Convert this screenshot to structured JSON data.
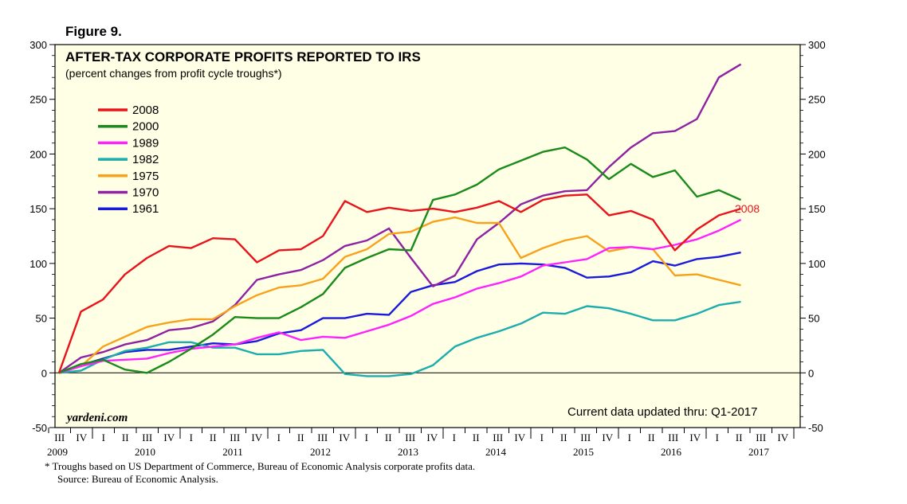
{
  "figure_label": "Figure 9.",
  "watermark": "yardeni.com",
  "updated_note": "Current data updated thru: Q1-2017",
  "footnote": "*  Troughs based on US Department of Commerce, Bureau of Economic Analysis corporate profits data.",
  "source": "Source: Bureau of Economic Analysis.",
  "end_label": "2008",
  "colors": {
    "background": "#ffffe6",
    "2008": "#e8141b",
    "2000": "#1a8a1a",
    "1989": "#ff22ff",
    "1982": "#1cadad",
    "1975": "#f7a21b",
    "1970": "#8e22a3",
    "1961": "#1a1adc"
  },
  "chart_data": {
    "type": "line",
    "title": "AFTER-TAX CORPORATE PROFITS REPORTED TO IRS",
    "subtitle": "(percent changes from profit cycle troughs*)",
    "xlabel": "",
    "ylabel": "",
    "ylim": [
      -50,
      300
    ],
    "yticks": [
      -50,
      0,
      50,
      100,
      150,
      200,
      250,
      300
    ],
    "ytick_labels": [
      "-50",
      "0",
      "50",
      "100",
      "150",
      "200",
      "250",
      "300"
    ],
    "quarter_labels": [
      "III",
      "IV",
      "I",
      "II",
      "III",
      "IV",
      "I",
      "II",
      "III",
      "IV",
      "I",
      "II",
      "III",
      "IV",
      "I",
      "II",
      "III",
      "IV",
      "I",
      "II",
      "III",
      "IV",
      "I",
      "II",
      "III",
      "IV",
      "I",
      "II",
      "III",
      "IV",
      "I",
      "II",
      "III",
      "IV"
    ],
    "year_labels": [
      "2009",
      "2010",
      "2011",
      "2012",
      "2013",
      "2014",
      "2015",
      "2016",
      "2017"
    ],
    "x": [
      0,
      1,
      2,
      3,
      4,
      5,
      6,
      7,
      8,
      9,
      10,
      11,
      12,
      13,
      14,
      15,
      16,
      17,
      18,
      19,
      20,
      21,
      22,
      23,
      24,
      25,
      26,
      27,
      28,
      29,
      30,
      31
    ],
    "legend": [
      "2008",
      "2000",
      "1989",
      "1982",
      "1975",
      "1970",
      "1961"
    ],
    "legend_position": "upper-left",
    "series": [
      {
        "name": "2008",
        "values": [
          0,
          56,
          67,
          90,
          105,
          116,
          114,
          123,
          122,
          101,
          112,
          113,
          125,
          157,
          147,
          151,
          148,
          150,
          147,
          151,
          157,
          147,
          158,
          162,
          163,
          144,
          148,
          140,
          112,
          131,
          144,
          150
        ]
      },
      {
        "name": "2000",
        "values": [
          0,
          8,
          12,
          3,
          0,
          10,
          22,
          35,
          51,
          50,
          50,
          60,
          72,
          96,
          105,
          113,
          112,
          158,
          163,
          172,
          186,
          194,
          202,
          206,
          195,
          177,
          191,
          179,
          185,
          161,
          167,
          158
        ]
      },
      {
        "name": "1989",
        "values": [
          0,
          6,
          11,
          12,
          13,
          18,
          22,
          24,
          26,
          32,
          37,
          30,
          33,
          32,
          38,
          44,
          52,
          63,
          69,
          77,
          82,
          88,
          98,
          101,
          104,
          114,
          115,
          113,
          117,
          122,
          130,
          140
        ]
      },
      {
        "name": "1982",
        "values": [
          0,
          2,
          12,
          20,
          23,
          28,
          28,
          23,
          23,
          17,
          17,
          20,
          21,
          -1,
          -3,
          -3,
          -1,
          7,
          24,
          32,
          38,
          45,
          55,
          54,
          61,
          59,
          54,
          48,
          48,
          54,
          62,
          65
        ]
      },
      {
        "name": "1975",
        "values": [
          0,
          6,
          24,
          33,
          42,
          46,
          49,
          49,
          61,
          71,
          78,
          80,
          86,
          106,
          113,
          127,
          129,
          138,
          142,
          137,
          137,
          105,
          114,
          121,
          125,
          111,
          115,
          113,
          89,
          90,
          85,
          80
        ]
      },
      {
        "name": "1970",
        "values": [
          0,
          14,
          19,
          26,
          30,
          39,
          41,
          47,
          62,
          85,
          90,
          94,
          103,
          116,
          121,
          132,
          105,
          79,
          89,
          122,
          137,
          154,
          162,
          166,
          167,
          188,
          206,
          219,
          221,
          232,
          270,
          282
        ]
      },
      {
        "name": "1961",
        "values": [
          0,
          7,
          13,
          19,
          21,
          21,
          24,
          27,
          26,
          29,
          36,
          39,
          50,
          50,
          54,
          53,
          74,
          80,
          83,
          93,
          99,
          100,
          99,
          96,
          87,
          88,
          92,
          102,
          98,
          104,
          106,
          110
        ]
      }
    ]
  }
}
